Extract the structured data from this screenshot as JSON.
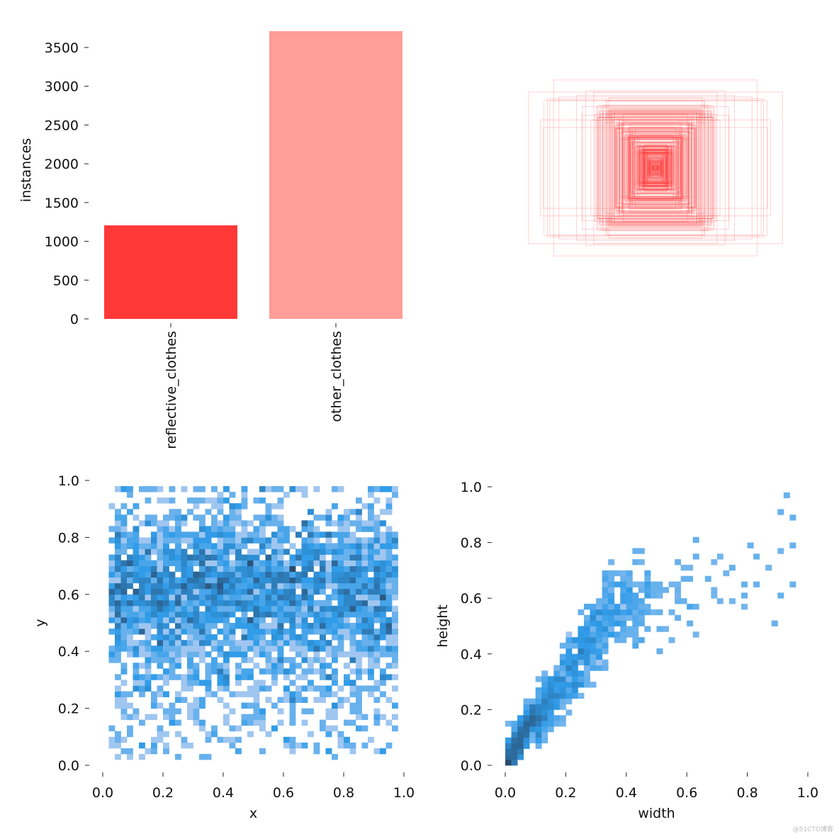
{
  "watermark": "@51CTO博客",
  "chart_data": [
    {
      "type": "bar",
      "title": "",
      "categories": [
        "reflective_clothes",
        "other_clothes"
      ],
      "values": [
        1206,
        3711
      ],
      "colors": [
        "#ff3838",
        "#ff9d97"
      ],
      "xlabel": "",
      "ylabel": "instances",
      "ylim": [
        0,
        3711
      ],
      "yticks": [
        0,
        500,
        1000,
        1500,
        2000,
        2500,
        3000,
        3500
      ],
      "ytick_labels": [
        "0",
        "500",
        "1000",
        "1500",
        "2000",
        "2500",
        "3000",
        "3500"
      ]
    },
    {
      "type": "box-overlay",
      "title": "",
      "box_color": "#ff3838",
      "count": 300
    },
    {
      "type": "heatmap",
      "title": "",
      "xlabel": "x",
      "ylabel": "y",
      "xlim": [
        0,
        1
      ],
      "ylim": [
        0,
        1
      ],
      "bins": 50,
      "xticks": [
        "0.0",
        "0.2",
        "0.4",
        "0.6",
        "0.8",
        "1.0"
      ],
      "yticks": [
        "0.0",
        "0.2",
        "0.4",
        "0.6",
        "0.8",
        "1.0"
      ],
      "x_range": [
        0.03,
        0.97
      ],
      "y_mean": 0.6,
      "y_sd": 0.16,
      "samples": 4917,
      "colors": [
        "#9fc6f0",
        "#2f9be8",
        "#2b4a6b"
      ]
    },
    {
      "type": "heatmap",
      "title": "",
      "xlabel": "width",
      "ylabel": "height",
      "xlim": [
        0,
        1
      ],
      "ylim": [
        0,
        1
      ],
      "bins": 50,
      "xticks": [
        "0.0",
        "0.2",
        "0.4",
        "0.6",
        "0.8",
        "1.0"
      ],
      "yticks": [
        "0.0",
        "0.2",
        "0.4",
        "0.6",
        "0.8",
        "1.0"
      ],
      "samples": 4917,
      "colors": [
        "#9fc6f0",
        "#2f9be8",
        "#2b4a6b"
      ]
    }
  ]
}
